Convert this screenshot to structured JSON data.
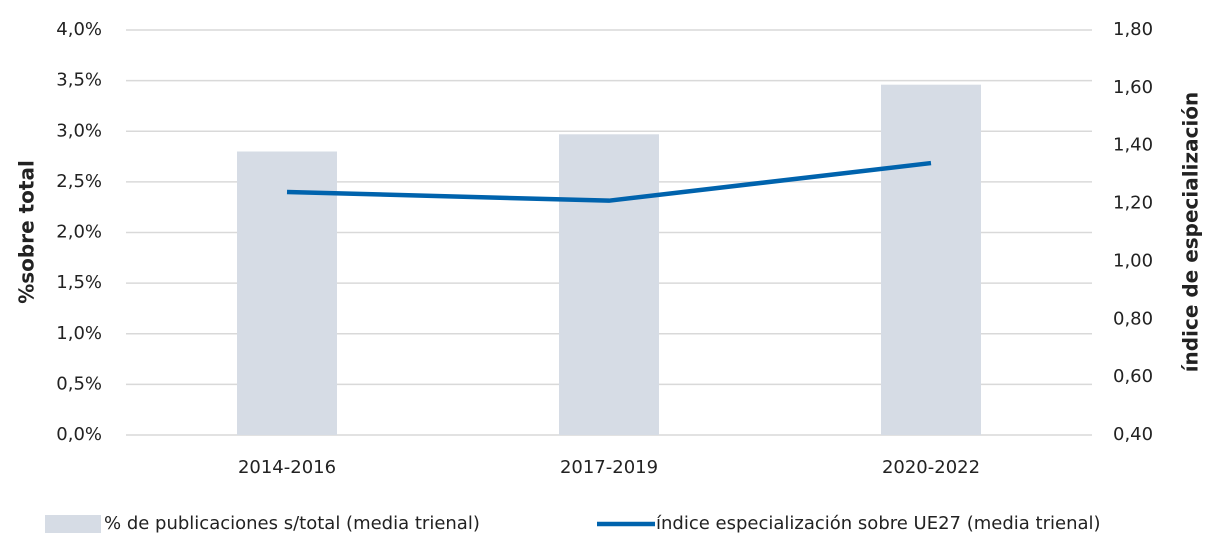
{
  "chart_data": {
    "type": "bar",
    "categories": [
      "2014-2016",
      "2017-2019",
      "2020-2022"
    ],
    "series": [
      {
        "name": "% de publicaciones s/total (media trienal)",
        "type": "bar",
        "color": "#d6dce5",
        "values": [
          2.8,
          2.97,
          3.46
        ]
      },
      {
        "name": "índice especialización sobre UE27 (media trienal)",
        "type": "line",
        "axis": "y2",
        "color": "#0063ad",
        "values": [
          1.24,
          1.21,
          1.34
        ]
      }
    ],
    "y_label": "%sobre total",
    "y2_label": "índice de especialización",
    "ylim": [
      0,
      4
    ],
    "yticks": [
      {
        "value": 0,
        "label": "0,0%"
      },
      {
        "value": 0.5,
        "label": "0,5%"
      },
      {
        "value": 1,
        "label": "1,0%"
      },
      {
        "value": 1.5,
        "label": "1,5%"
      },
      {
        "value": 2,
        "label": "2,0%"
      },
      {
        "value": 2.5,
        "label": "2,5%"
      },
      {
        "value": 3,
        "label": "3,0%"
      },
      {
        "value": 3.5,
        "label": "3,5%"
      },
      {
        "value": 4,
        "label": "4,0%"
      }
    ],
    "y2lim": [
      0.4,
      1.8
    ],
    "y2ticks": [
      {
        "value": 0.4,
        "label": "0,40"
      },
      {
        "value": 0.6,
        "label": "0,60"
      },
      {
        "value": 0.8,
        "label": "0,80"
      },
      {
        "value": 1,
        "label": "1,00"
      },
      {
        "value": 1.2,
        "label": "1,20"
      },
      {
        "value": 1.4,
        "label": "1,40"
      },
      {
        "value": 1.6,
        "label": "1,60"
      },
      {
        "value": 1.8,
        "label": "1,80"
      }
    ],
    "grid": true,
    "legend": "bottom"
  }
}
